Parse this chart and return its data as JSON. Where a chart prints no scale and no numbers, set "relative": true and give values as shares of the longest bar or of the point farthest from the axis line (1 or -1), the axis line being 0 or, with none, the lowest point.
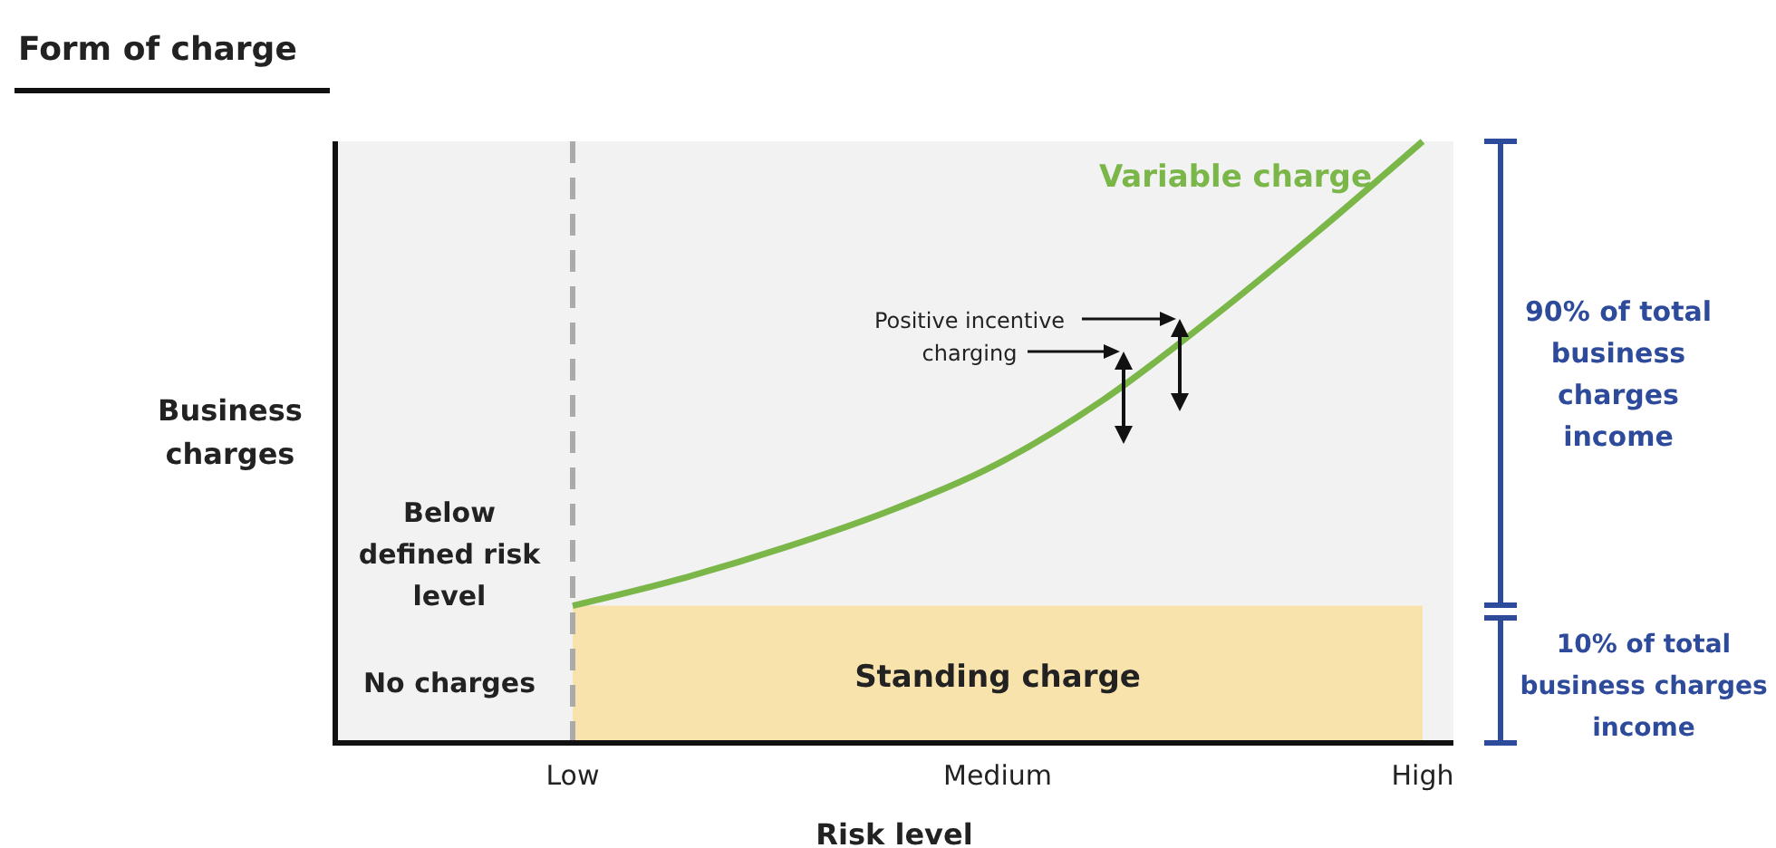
{
  "chart_data": {
    "type": "line",
    "title": "Form of charge",
    "xlabel": "Risk level",
    "relative": true,
    "categories": [
      "Low",
      null,
      null,
      null,
      "Medium",
      null,
      null,
      null,
      "High"
    ],
    "series": [
      {
        "name": "Standing charge",
        "type": "area",
        "color": "#f9e3ad",
        "values": [
          0.228,
          0.228,
          0.228,
          0.228,
          0.228,
          0.228,
          0.228,
          0.228,
          0.228
        ]
      },
      {
        "name": "Variable charge",
        "color": "#7ab648",
        "values": [
          0.228,
          0.272,
          0.325,
          0.387,
          0.464,
          0.571,
          0.704,
          0.848,
          1
        ]
      }
    ],
    "ref_lines": [
      {
        "axis": "x",
        "value": "Low",
        "color": "#aaaaaa",
        "line_style": "dashed"
      }
    ],
    "annotations": [
      "Business charges",
      "Below defined risk level",
      "No charges",
      "Positive incentive charging",
      "90% of total business charges income",
      "10% of total business charges income"
    ],
    "marker": "none",
    "line_style": "solid"
  }
}
